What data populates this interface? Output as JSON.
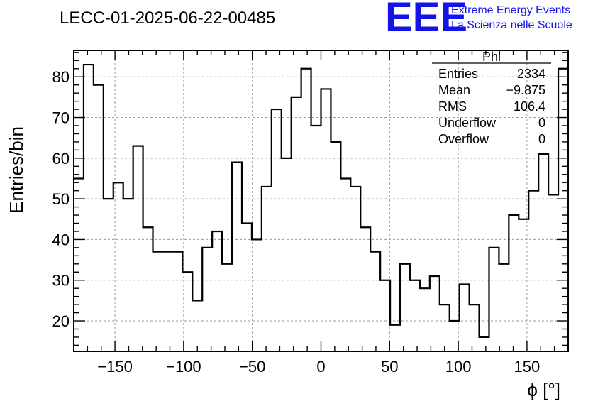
{
  "logo": {
    "mark": "EEE",
    "line1": "Extreme Energy Events",
    "line2": "La Scienza nelle Scuole",
    "color": "#1414e6"
  },
  "chart_data": {
    "type": "histogram",
    "title": "LECC-01-2025-06-22-00485",
    "xlabel": "ϕ [°]",
    "ylabel": "Entries/bin",
    "xlim": [
      -180,
      180
    ],
    "ylim": [
      12.5,
      86.5
    ],
    "grid": true,
    "xticks": [
      -150,
      -100,
      -50,
      0,
      50,
      100,
      150
    ],
    "xtick_labels": [
      "−150",
      "−100",
      "−50",
      "0",
      "50",
      "100",
      "150"
    ],
    "yticks": [
      20,
      30,
      40,
      50,
      60,
      70,
      80
    ],
    "ytick_labels": [
      "20",
      "30",
      "40",
      "50",
      "60",
      "70",
      "80"
    ],
    "bin_edges_start": -180,
    "bin_width": 7.2,
    "values": [
      55,
      83,
      78,
      50,
      54,
      50,
      63,
      43,
      37,
      37,
      37,
      32,
      25,
      38,
      42,
      34,
      59,
      44,
      40,
      53,
      72,
      60,
      75,
      82,
      68,
      77,
      64,
      55,
      53,
      43,
      37,
      30,
      19,
      34,
      30,
      28,
      31,
      24,
      20,
      29,
      24,
      16,
      38,
      34,
      46,
      45,
      52,
      61,
      51,
      82
    ],
    "stats": {
      "name": "Phi",
      "rows": [
        {
          "label": "Entries",
          "value": "2334"
        },
        {
          "label": "Mean",
          "value": "−9.875"
        },
        {
          "label": "RMS",
          "value": "106.4"
        },
        {
          "label": "Underflow",
          "value": "0"
        },
        {
          "label": "Overflow",
          "value": "0"
        }
      ]
    },
    "legend_position": "top-right"
  }
}
